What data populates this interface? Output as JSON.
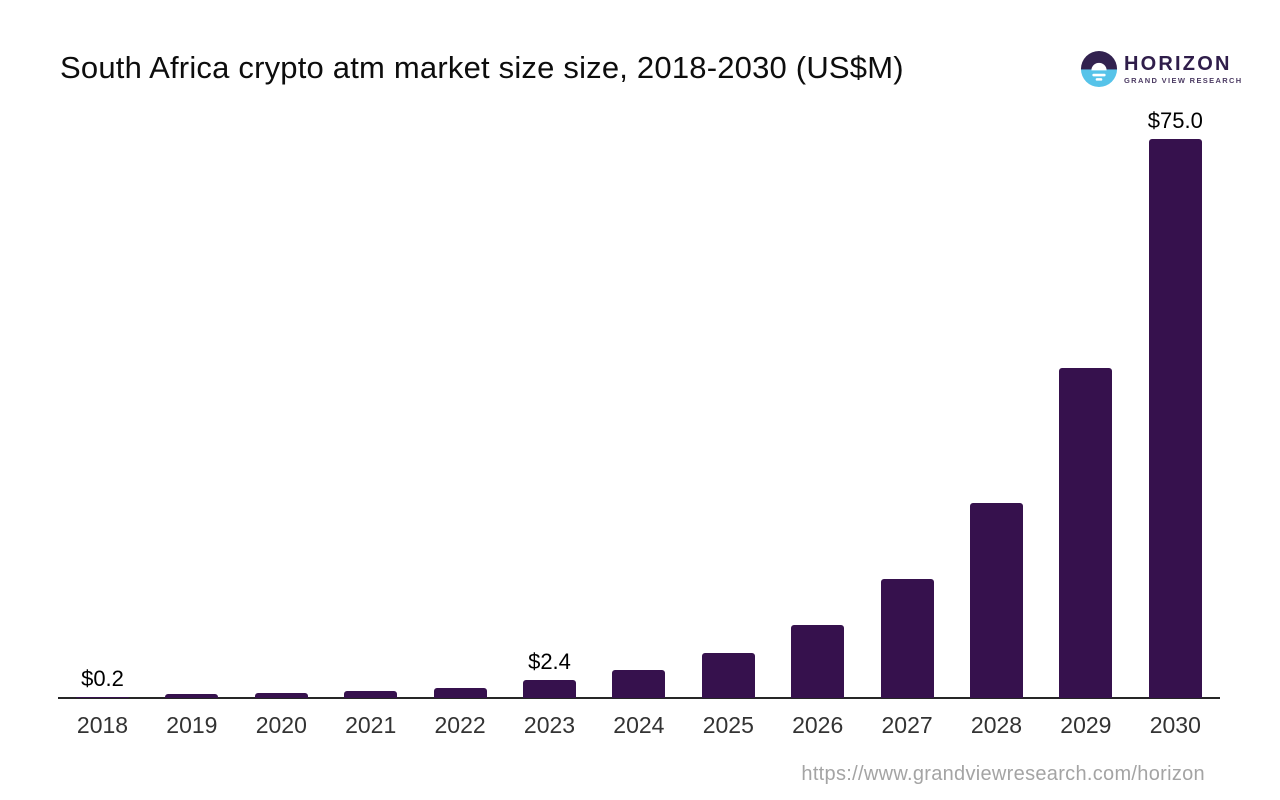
{
  "page": {
    "title": "South Africa crypto atm market size size, 2018-2030 (US$M)"
  },
  "logo": {
    "brand": "HORIZON",
    "subtitle": "GRAND VIEW RESEARCH",
    "icon": "horizon-sunrise-icon",
    "colors": {
      "purple": "#32224f",
      "blue": "#56c3e9"
    }
  },
  "chart_data": {
    "type": "bar",
    "title": "South Africa crypto atm market size size, 2018-2030 (US$M)",
    "unit": "US$M",
    "categories": [
      "2018",
      "2019",
      "2020",
      "2021",
      "2022",
      "2023",
      "2024",
      "2025",
      "2026",
      "2027",
      "2028",
      "2029",
      "2030"
    ],
    "values": [
      0.2,
      0.5,
      0.7,
      1.0,
      1.4,
      2.4,
      3.8,
      6.0,
      9.8,
      16.0,
      26.2,
      44.3,
      75.0
    ],
    "annotations": [
      {
        "category": "2018",
        "text": "$0.2"
      },
      {
        "category": "2023",
        "text": "$2.4"
      },
      {
        "category": "2030",
        "text": "$75.0"
      }
    ],
    "ylim": [
      0,
      75
    ],
    "grid": false,
    "legend": "none",
    "bar_color": "#36114d",
    "axis_color": "#262626",
    "tick_color": "#333333"
  },
  "footer": {
    "url": "https://www.grandviewresearch.com/horizon"
  }
}
